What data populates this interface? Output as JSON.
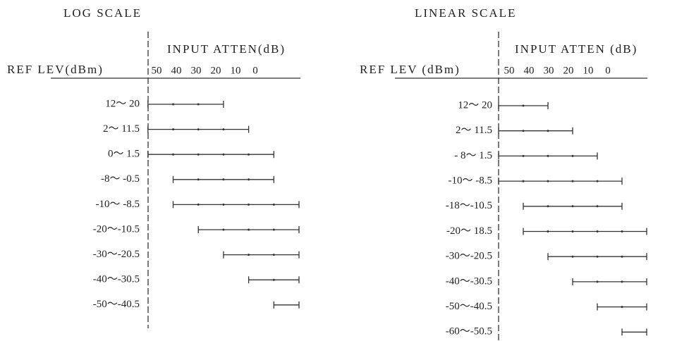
{
  "panels": [
    {
      "title": "LOG SCALE",
      "atten_label": "INPUT ATTEN(dB)",
      "ref_label": "REF LEV(dBm)",
      "ticks": [
        50,
        40,
        30,
        20,
        10,
        0
      ],
      "rows": [
        {
          "label": "12～ 20",
          "range": [
            60,
            30
          ]
        },
        {
          "label": "2～ 11.5",
          "range": [
            60,
            20
          ]
        },
        {
          "label": "0～ 1.5",
          "range": [
            60,
            10
          ]
        },
        {
          "label": "-8～ -0.5",
          "range": [
            50,
            10
          ]
        },
        {
          "label": "-10～ -8.5",
          "range": [
            50,
            0
          ]
        },
        {
          "label": "-20～-10.5",
          "range": [
            40,
            0
          ]
        },
        {
          "label": "-30～-20.5",
          "range": [
            30,
            0
          ]
        },
        {
          "label": "-40～-30.5",
          "range": [
            20,
            0
          ]
        },
        {
          "label": "-50～-40.5",
          "range": [
            10,
            0
          ]
        }
      ]
    },
    {
      "title": "LINEAR SCALE",
      "atten_label": "INPUT ATTEN (dB)",
      "ref_label": "REF LEV (dBm)",
      "ticks": [
        50,
        40,
        30,
        20,
        10,
        0
      ],
      "rows": [
        {
          "label": "12～ 20",
          "range": [
            60,
            40
          ]
        },
        {
          "label": "2～ 11.5",
          "range": [
            60,
            30
          ]
        },
        {
          "label": "- 8～ 1.5",
          "range": [
            60,
            20
          ]
        },
        {
          "label": "-10～ -8.5",
          "range": [
            60,
            10
          ]
        },
        {
          "label": "-18～-10.5",
          "range": [
            50,
            10
          ]
        },
        {
          "label": "-20～ 18.5",
          "range": [
            50,
            0
          ]
        },
        {
          "label": "-30～-20.5",
          "range": [
            40,
            0
          ]
        },
        {
          "label": "-40～-30.5",
          "range": [
            30,
            0
          ]
        },
        {
          "label": "-50～-40.5",
          "range": [
            20,
            0
          ]
        },
        {
          "label": "-60～-50.5",
          "range": [
            10,
            0
          ]
        }
      ]
    }
  ]
}
